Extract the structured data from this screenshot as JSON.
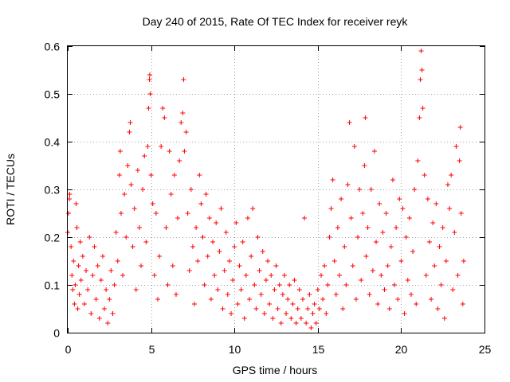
{
  "chart_data": {
    "type": "scatter",
    "title": "Day 240 of 2015, Rate Of TEC Index for receiver reyk",
    "xlabel": "GPS time / hours",
    "ylabel": "ROTI / TECUs",
    "xlim": [
      0,
      25
    ],
    "ylim": [
      0,
      0.6
    ],
    "xticks": [
      0,
      5,
      10,
      15,
      20,
      25
    ],
    "xtick_labels": [
      "0",
      "5",
      "10",
      "15",
      "20",
      "25"
    ],
    "yticks": [
      0,
      0.1,
      0.2,
      0.3,
      0.4,
      0.5,
      0.6
    ],
    "ytick_labels": [
      "0",
      "0.1",
      "0.2",
      "0.3",
      "0.4",
      "0.5",
      "0.6"
    ],
    "grid": true,
    "marker": "plus",
    "color": "#ff0000",
    "series": [
      {
        "name": "ROTI",
        "points": [
          [
            0.0,
            0.21
          ],
          [
            0.05,
            0.25
          ],
          [
            0.1,
            0.28
          ],
          [
            0.12,
            0.29
          ],
          [
            0.2,
            0.18
          ],
          [
            0.25,
            0.12
          ],
          [
            0.3,
            0.09
          ],
          [
            0.35,
            0.15
          ],
          [
            0.4,
            0.06
          ],
          [
            0.45,
            0.1
          ],
          [
            0.5,
            0.27
          ],
          [
            0.55,
            0.22
          ],
          [
            0.6,
            0.05
          ],
          [
            0.65,
            0.14
          ],
          [
            0.7,
            0.08
          ],
          [
            0.75,
            0.19
          ],
          [
            0.8,
            0.11
          ],
          [
            0.9,
            0.16
          ],
          [
            1.0,
            0.06
          ],
          [
            1.1,
            0.13
          ],
          [
            1.2,
            0.09
          ],
          [
            1.3,
            0.2
          ],
          [
            1.4,
            0.04
          ],
          [
            1.5,
            0.12
          ],
          [
            1.6,
            0.18
          ],
          [
            1.7,
            0.07
          ],
          [
            1.8,
            0.14
          ],
          [
            1.9,
            0.03
          ],
          [
            2.0,
            0.11
          ],
          [
            2.1,
            0.16
          ],
          [
            2.2,
            0.05
          ],
          [
            2.3,
            0.09
          ],
          [
            2.4,
            0.02
          ],
          [
            2.5,
            0.07
          ],
          [
            2.6,
            0.13
          ],
          [
            2.7,
            0.04
          ],
          [
            2.8,
            0.1
          ],
          [
            2.9,
            0.21
          ],
          [
            3.0,
            0.15
          ],
          [
            3.1,
            0.33
          ],
          [
            3.15,
            0.38
          ],
          [
            3.2,
            0.25
          ],
          [
            3.3,
            0.12
          ],
          [
            3.4,
            0.29
          ],
          [
            3.5,
            0.2
          ],
          [
            3.6,
            0.35
          ],
          [
            3.7,
            0.42
          ],
          [
            3.75,
            0.44
          ],
          [
            3.8,
            0.31
          ],
          [
            3.9,
            0.18
          ],
          [
            4.0,
            0.26
          ],
          [
            4.1,
            0.09
          ],
          [
            4.2,
            0.34
          ],
          [
            4.3,
            0.22
          ],
          [
            4.4,
            0.14
          ],
          [
            4.5,
            0.3
          ],
          [
            4.6,
            0.37
          ],
          [
            4.7,
            0.19
          ],
          [
            4.8,
            0.39
          ],
          [
            4.85,
            0.47
          ],
          [
            4.9,
            0.53
          ],
          [
            4.92,
            0.54
          ],
          [
            4.95,
            0.5
          ],
          [
            5.0,
            0.33
          ],
          [
            5.1,
            0.27
          ],
          [
            5.2,
            0.12
          ],
          [
            5.3,
            0.25
          ],
          [
            5.4,
            0.07
          ],
          [
            5.5,
            0.16
          ],
          [
            5.6,
            0.39
          ],
          [
            5.7,
            0.47
          ],
          [
            5.8,
            0.45
          ],
          [
            5.9,
            0.22
          ],
          [
            6.0,
            0.1
          ],
          [
            6.1,
            0.38
          ],
          [
            6.2,
            0.29
          ],
          [
            6.3,
            0.14
          ],
          [
            6.4,
            0.33
          ],
          [
            6.5,
            0.08
          ],
          [
            6.6,
            0.24
          ],
          [
            6.7,
            0.36
          ],
          [
            6.8,
            0.44
          ],
          [
            6.9,
            0.46
          ],
          [
            6.95,
            0.53
          ],
          [
            7.0,
            0.38
          ],
          [
            7.1,
            0.42
          ],
          [
            7.2,
            0.25
          ],
          [
            7.3,
            0.13
          ],
          [
            7.4,
            0.3
          ],
          [
            7.5,
            0.18
          ],
          [
            7.6,
            0.06
          ],
          [
            7.7,
            0.22
          ],
          [
            7.8,
            0.15
          ],
          [
            7.9,
            0.33
          ],
          [
            8.0,
            0.27
          ],
          [
            8.1,
            0.2
          ],
          [
            8.2,
            0.1
          ],
          [
            8.3,
            0.29
          ],
          [
            8.4,
            0.16
          ],
          [
            8.5,
            0.24
          ],
          [
            8.6,
            0.07
          ],
          [
            8.7,
            0.19
          ],
          [
            8.8,
            0.12
          ],
          [
            8.9,
            0.23
          ],
          [
            9.0,
            0.09
          ],
          [
            9.1,
            0.17
          ],
          [
            9.2,
            0.26
          ],
          [
            9.3,
            0.05
          ],
          [
            9.4,
            0.13
          ],
          [
            9.5,
            0.21
          ],
          [
            9.6,
            0.08
          ],
          [
            9.7,
            0.15
          ],
          [
            9.8,
            0.04
          ],
          [
            9.9,
            0.11
          ],
          [
            10.0,
            0.18
          ],
          [
            10.1,
            0.23
          ],
          [
            10.2,
            0.06
          ],
          [
            10.3,
            0.14
          ],
          [
            10.4,
            0.09
          ],
          [
            10.5,
            0.19
          ],
          [
            10.6,
            0.03
          ],
          [
            10.7,
            0.12
          ],
          [
            10.8,
            0.24
          ],
          [
            10.9,
            0.07
          ],
          [
            11.0,
            0.16
          ],
          [
            11.1,
            0.26
          ],
          [
            11.2,
            0.1
          ],
          [
            11.3,
            0.05
          ],
          [
            11.4,
            0.2
          ],
          [
            11.5,
            0.13
          ],
          [
            11.6,
            0.08
          ],
          [
            11.7,
            0.17
          ],
          [
            11.8,
            0.04
          ],
          [
            11.9,
            0.11
          ],
          [
            12.0,
            0.15
          ],
          [
            12.1,
            0.06
          ],
          [
            12.2,
            0.12
          ],
          [
            12.3,
            0.03
          ],
          [
            12.4,
            0.09
          ],
          [
            12.5,
            0.14
          ],
          [
            12.6,
            0.05
          ],
          [
            12.7,
            0.1
          ],
          [
            12.8,
            0.02
          ],
          [
            12.9,
            0.08
          ],
          [
            13.0,
            0.12
          ],
          [
            13.1,
            0.04
          ],
          [
            13.2,
            0.07
          ],
          [
            13.3,
            0.1
          ],
          [
            13.4,
            0.03
          ],
          [
            13.5,
            0.06
          ],
          [
            13.6,
            0.11
          ],
          [
            13.7,
            0.02
          ],
          [
            13.8,
            0.05
          ],
          [
            13.9,
            0.09
          ],
          [
            14.0,
            0.03
          ],
          [
            14.1,
            0.07
          ],
          [
            14.2,
            0.24
          ],
          [
            14.3,
            0.02
          ],
          [
            14.4,
            0.05
          ],
          [
            14.5,
            0.08
          ],
          [
            14.6,
            0.01
          ],
          [
            14.7,
            0.04
          ],
          [
            14.8,
            0.06
          ],
          [
            14.9,
            0.02
          ],
          [
            15.0,
            0.09
          ],
          [
            15.1,
            0.05
          ],
          [
            15.2,
            0.12
          ],
          [
            15.3,
            0.07
          ],
          [
            15.4,
            0.14
          ],
          [
            15.5,
            0.04
          ],
          [
            15.6,
            0.1
          ],
          [
            15.7,
            0.2
          ],
          [
            15.8,
            0.26
          ],
          [
            15.9,
            0.32
          ],
          [
            16.0,
            0.15
          ],
          [
            16.1,
            0.08
          ],
          [
            16.2,
            0.22
          ],
          [
            16.3,
            0.12
          ],
          [
            16.4,
            0.28
          ],
          [
            16.5,
            0.05
          ],
          [
            16.6,
            0.18
          ],
          [
            16.7,
            0.1
          ],
          [
            16.8,
            0.31
          ],
          [
            16.9,
            0.44
          ],
          [
            17.0,
            0.24
          ],
          [
            17.1,
            0.14
          ],
          [
            17.2,
            0.39
          ],
          [
            17.3,
            0.07
          ],
          [
            17.4,
            0.2
          ],
          [
            17.5,
            0.3
          ],
          [
            17.6,
            0.11
          ],
          [
            17.7,
            0.25
          ],
          [
            17.8,
            0.35
          ],
          [
            17.85,
            0.45
          ],
          [
            17.9,
            0.16
          ],
          [
            18.0,
            0.22
          ],
          [
            18.1,
            0.08
          ],
          [
            18.2,
            0.3
          ],
          [
            18.3,
            0.13
          ],
          [
            18.4,
            0.38
          ],
          [
            18.5,
            0.19
          ],
          [
            18.6,
            0.06
          ],
          [
            18.7,
            0.27
          ],
          [
            18.8,
            0.12
          ],
          [
            18.9,
            0.21
          ],
          [
            19.0,
            0.09
          ],
          [
            19.1,
            0.25
          ],
          [
            19.2,
            0.14
          ],
          [
            19.3,
            0.05
          ],
          [
            19.4,
            0.18
          ],
          [
            19.5,
            0.32
          ],
          [
            19.6,
            0.1
          ],
          [
            19.7,
            0.22
          ],
          [
            19.8,
            0.07
          ],
          [
            19.9,
            0.28
          ],
          [
            20.0,
            0.15
          ],
          [
            20.1,
            0.26
          ],
          [
            20.2,
            0.04
          ],
          [
            20.3,
            0.2
          ],
          [
            20.4,
            0.11
          ],
          [
            20.5,
            0.24
          ],
          [
            20.6,
            0.08
          ],
          [
            20.7,
            0.17
          ],
          [
            20.8,
            0.3
          ],
          [
            20.9,
            0.06
          ],
          [
            21.0,
            0.36
          ],
          [
            21.1,
            0.45
          ],
          [
            21.15,
            0.53
          ],
          [
            21.2,
            0.59
          ],
          [
            21.25,
            0.55
          ],
          [
            21.3,
            0.47
          ],
          [
            21.4,
            0.33
          ],
          [
            21.5,
            0.12
          ],
          [
            21.6,
            0.28
          ],
          [
            21.7,
            0.19
          ],
          [
            21.8,
            0.07
          ],
          [
            21.9,
            0.23
          ],
          [
            22.0,
            0.14
          ],
          [
            22.1,
            0.27
          ],
          [
            22.2,
            0.05
          ],
          [
            22.3,
            0.18
          ],
          [
            22.4,
            0.1
          ],
          [
            22.5,
            0.22
          ],
          [
            22.6,
            0.03
          ],
          [
            22.7,
            0.15
          ],
          [
            22.8,
            0.31
          ],
          [
            22.9,
            0.26
          ],
          [
            23.0,
            0.33
          ],
          [
            23.1,
            0.09
          ],
          [
            23.2,
            0.21
          ],
          [
            23.3,
            0.39
          ],
          [
            23.4,
            0.12
          ],
          [
            23.5,
            0.36
          ],
          [
            23.55,
            0.43
          ],
          [
            23.6,
            0.25
          ],
          [
            23.7,
            0.06
          ],
          [
            23.75,
            0.15
          ]
        ]
      }
    ]
  }
}
